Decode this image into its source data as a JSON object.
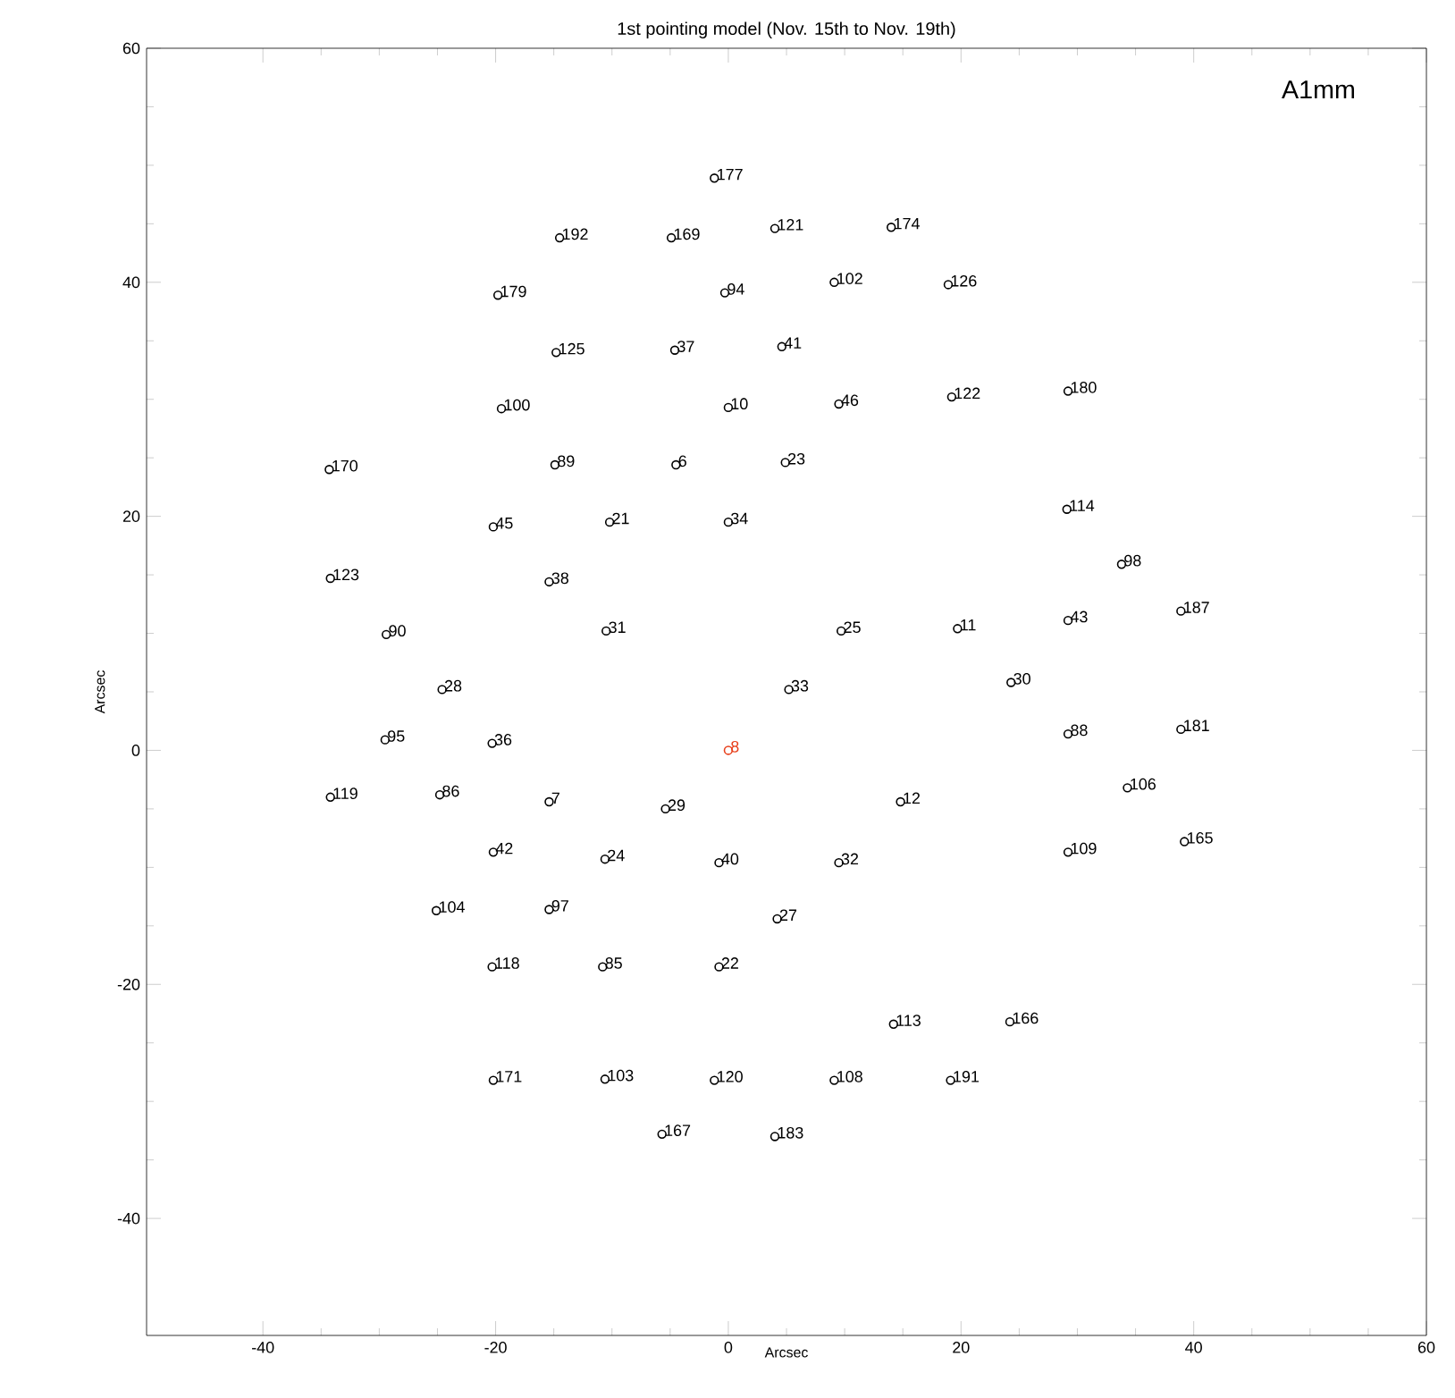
{
  "chart_data": {
    "type": "scatter",
    "title": "1st pointing model (Nov. 15th to Nov. 19th)",
    "xlabel": "Arcsec",
    "ylabel": "Arcsec",
    "xlim": [
      -50,
      60
    ],
    "ylim": [
      -50,
      60
    ],
    "xticks": [
      -40,
      -20,
      0,
      20,
      40,
      60
    ],
    "yticks": [
      -40,
      -20,
      0,
      20,
      40,
      60
    ],
    "grid": false,
    "marker": "circle",
    "series": [
      {
        "color": "#000000",
        "x": [
          -1.2,
          -14.5,
          -4.9,
          4.0,
          14,
          -19.8,
          -0.3,
          9.1,
          18.9,
          -14.8,
          -4.6,
          4.6,
          -19.5,
          0,
          9.5,
          19.2,
          29.2,
          -34.3,
          -14.9,
          -4.5,
          4.9,
          29.1,
          -20.2,
          -10.2,
          0,
          33.8,
          -34.2,
          -15.4,
          38.9,
          29.2,
          -10.5,
          9.7,
          19.7,
          -29.4,
          24.3,
          5.2,
          -24.6,
          -29.5,
          -20.3,
          29.2,
          38.9,
          -34.2,
          -24.8,
          -15.4,
          -5.4,
          14.8,
          34.3,
          -20.2,
          -10.6,
          -0.8,
          9.5,
          29.2,
          39.2,
          -25.1,
          -15.4,
          4.2,
          -20.3,
          -10.8,
          -0.8,
          14.2,
          24.2,
          -20.2,
          -10.6,
          -1.2,
          9.1,
          19.1,
          -5.7,
          4
        ],
        "values": [
          48.9,
          43.8,
          43.8,
          44.6,
          44.7,
          38.9,
          39.1,
          40,
          39.8,
          34,
          34.2,
          34.5,
          29.2,
          29.3,
          29.6,
          30.2,
          30.7,
          24,
          24.4,
          24.4,
          24.6,
          20.6,
          19.1,
          19.5,
          19.5,
          15.9,
          14.7,
          14.4,
          11.9,
          11.1,
          10.2,
          10.2,
          10.4,
          9.9,
          5.8,
          5.2,
          5.2,
          0.9,
          0.6,
          1.4,
          1.8,
          -4,
          -3.8,
          -4.4,
          -5,
          -4.4,
          -3.2,
          -8.7,
          -9.3,
          -9.6,
          -9.6,
          -8.7,
          -7.8,
          -13.7,
          -13.6,
          -14.4,
          -18.5,
          -18.5,
          -18.5,
          -23.4,
          -23.2,
          -28.2,
          -28.1,
          -28.2,
          -28.2,
          -28.2,
          -32.8,
          -33
        ]
      },
      {
        "color": "#e8401c",
        "x": [
          0
        ],
        "values": [
          0
        ]
      }
    ],
    "annotations": [
      {
        "text": "177",
        "x": -1.2,
        "y": 48.9
      },
      {
        "text": "192",
        "x": -14.5,
        "y": 43.8
      },
      {
        "text": "169",
        "x": -4.9,
        "y": 43.8
      },
      {
        "text": "121",
        "x": 4.0,
        "y": 44.6
      },
      {
        "text": "174",
        "x": 14,
        "y": 44.7
      },
      {
        "text": "179",
        "x": -19.8,
        "y": 38.9
      },
      {
        "text": "94",
        "x": -0.3,
        "y": 39.1
      },
      {
        "text": "102",
        "x": 9.1,
        "y": 40
      },
      {
        "text": "126",
        "x": 18.9,
        "y": 39.8
      },
      {
        "text": "125",
        "x": -14.8,
        "y": 34
      },
      {
        "text": "37",
        "x": -4.6,
        "y": 34.2
      },
      {
        "text": "41",
        "x": 4.6,
        "y": 34.5
      },
      {
        "text": "100",
        "x": -19.5,
        "y": 29.2
      },
      {
        "text": "10",
        "x": 0,
        "y": 29.3
      },
      {
        "text": "46",
        "x": 9.5,
        "y": 29.6
      },
      {
        "text": "122",
        "x": 19.2,
        "y": 30.2
      },
      {
        "text": "180",
        "x": 29.2,
        "y": 30.7
      },
      {
        "text": "170",
        "x": -34.3,
        "y": 24
      },
      {
        "text": "89",
        "x": -14.9,
        "y": 24.4
      },
      {
        "text": "6",
        "x": -4.5,
        "y": 24.4
      },
      {
        "text": "23",
        "x": 4.9,
        "y": 24.6
      },
      {
        "text": "114",
        "x": 29.1,
        "y": 20.6
      },
      {
        "text": "45",
        "x": -20.2,
        "y": 19.1
      },
      {
        "text": "21",
        "x": -10.2,
        "y": 19.5
      },
      {
        "text": "34",
        "x": 0,
        "y": 19.5
      },
      {
        "text": "98",
        "x": 33.8,
        "y": 15.9
      },
      {
        "text": "123",
        "x": -34.2,
        "y": 14.7
      },
      {
        "text": "38",
        "x": -15.4,
        "y": 14.4
      },
      {
        "text": "187",
        "x": 38.9,
        "y": 11.9
      },
      {
        "text": "43",
        "x": 29.2,
        "y": 11.1
      },
      {
        "text": "31",
        "x": -10.5,
        "y": 10.2
      },
      {
        "text": "25",
        "x": 9.7,
        "y": 10.2
      },
      {
        "text": "11",
        "x": 19.7,
        "y": 10.4
      },
      {
        "text": "90",
        "x": -29.4,
        "y": 9.9
      },
      {
        "text": "30",
        "x": 24.3,
        "y": 5.8
      },
      {
        "text": "33",
        "x": 5.2,
        "y": 5.2
      },
      {
        "text": "28",
        "x": -24.6,
        "y": 5.2
      },
      {
        "text": "95",
        "x": -29.5,
        "y": 0.9
      },
      {
        "text": "36",
        "x": -20.3,
        "y": 0.6
      },
      {
        "text": "8",
        "x": 0,
        "y": 0
      },
      {
        "text": "88",
        "x": 29.2,
        "y": 1.4
      },
      {
        "text": "181",
        "x": 38.9,
        "y": 1.8
      },
      {
        "text": "119",
        "x": -34.2,
        "y": -4
      },
      {
        "text": "86",
        "x": -24.8,
        "y": -3.8
      },
      {
        "text": "7",
        "x": -15.4,
        "y": -4.4
      },
      {
        "text": "29",
        "x": -5.4,
        "y": -5
      },
      {
        "text": "12",
        "x": 14.8,
        "y": -4.4
      },
      {
        "text": "106",
        "x": 34.3,
        "y": -3.2
      },
      {
        "text": "42",
        "x": -20.2,
        "y": -8.7
      },
      {
        "text": "24",
        "x": -10.6,
        "y": -9.3
      },
      {
        "text": "40",
        "x": -0.8,
        "y": -9.6
      },
      {
        "text": "32",
        "x": 9.5,
        "y": -9.6
      },
      {
        "text": "109",
        "x": 29.2,
        "y": -8.7
      },
      {
        "text": "165",
        "x": 39.2,
        "y": -7.8
      },
      {
        "text": "104",
        "x": -25.1,
        "y": -13.7
      },
      {
        "text": "97",
        "x": -15.4,
        "y": -13.6
      },
      {
        "text": "27",
        "x": 4.2,
        "y": -14.4
      },
      {
        "text": "118",
        "x": -20.3,
        "y": -18.5
      },
      {
        "text": "85",
        "x": -10.8,
        "y": -18.5
      },
      {
        "text": "22",
        "x": -0.8,
        "y": -18.5
      },
      {
        "text": "113",
        "x": 14.2,
        "y": -23.4
      },
      {
        "text": "166",
        "x": 24.2,
        "y": -23.2
      },
      {
        "text": "171",
        "x": -20.2,
        "y": -28.2
      },
      {
        "text": "103",
        "x": -10.6,
        "y": -28.1
      },
      {
        "text": "120",
        "x": -1.2,
        "y": -28.2
      },
      {
        "text": "108",
        "x": 9.1,
        "y": -28.2
      },
      {
        "text": "191",
        "x": 19.1,
        "y": -28.2
      },
      {
        "text": "167",
        "x": -5.7,
        "y": -32.8
      },
      {
        "text": "183",
        "x": 4,
        "y": -33
      },
      "A1mm"
    ]
  }
}
